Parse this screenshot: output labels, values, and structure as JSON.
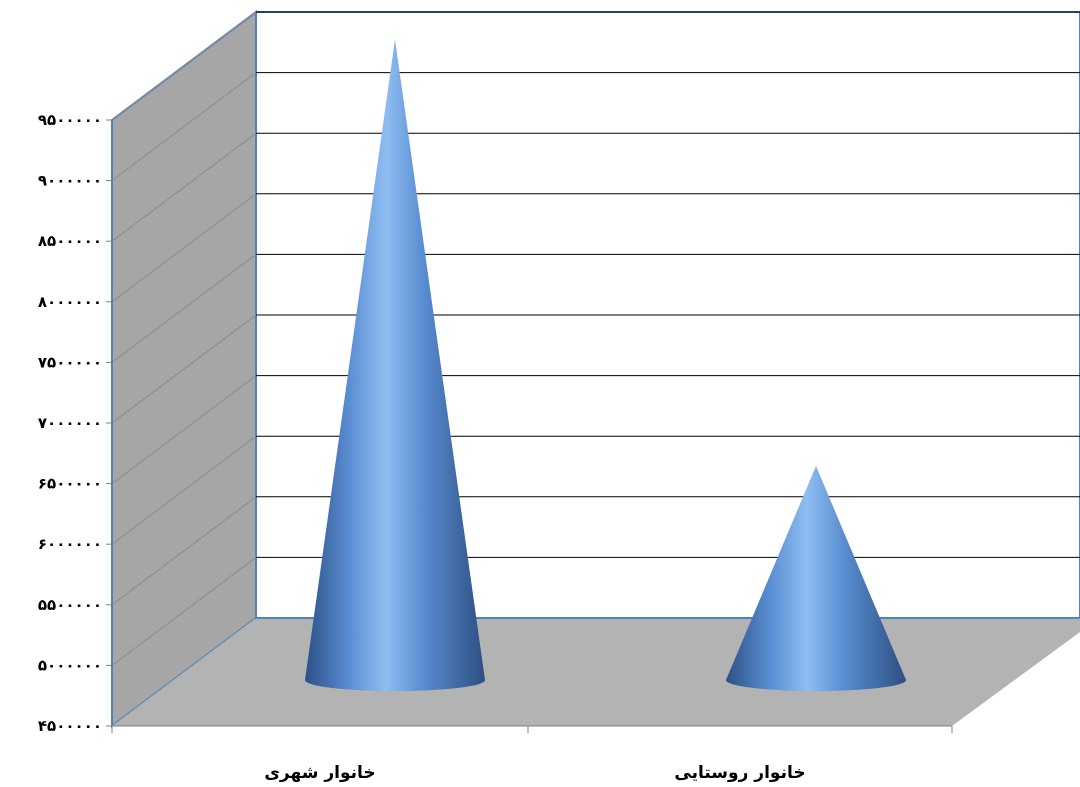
{
  "chart_data": {
    "type": "bar",
    "shape": "cone-3d",
    "categories": [
      "خانوار شهری",
      "خانوار روستایی"
    ],
    "values": [
      9720000,
      6200000
    ],
    "ylim": [
      4500000,
      9500000
    ],
    "ytick_labels": [
      "۴۵۰۰۰۰۰",
      "۵۰۰۰۰۰۰",
      "۵۵۰۰۰۰۰",
      "۶۰۰۰۰۰۰",
      "۶۵۰۰۰۰۰",
      "۷۰۰۰۰۰۰",
      "۷۵۰۰۰۰۰",
      "۸۰۰۰۰۰۰",
      "۸۵۰۰۰۰۰",
      "۹۰۰۰۰۰۰",
      "۹۵۰۰۰۰۰"
    ],
    "grid": true,
    "legend": "none",
    "colors": {
      "cone": "#4f81bd",
      "floor": "#b3b3b3",
      "side_wall": "#a6a6a6",
      "frame": "#4f81bd",
      "gridline": "#000000"
    }
  }
}
